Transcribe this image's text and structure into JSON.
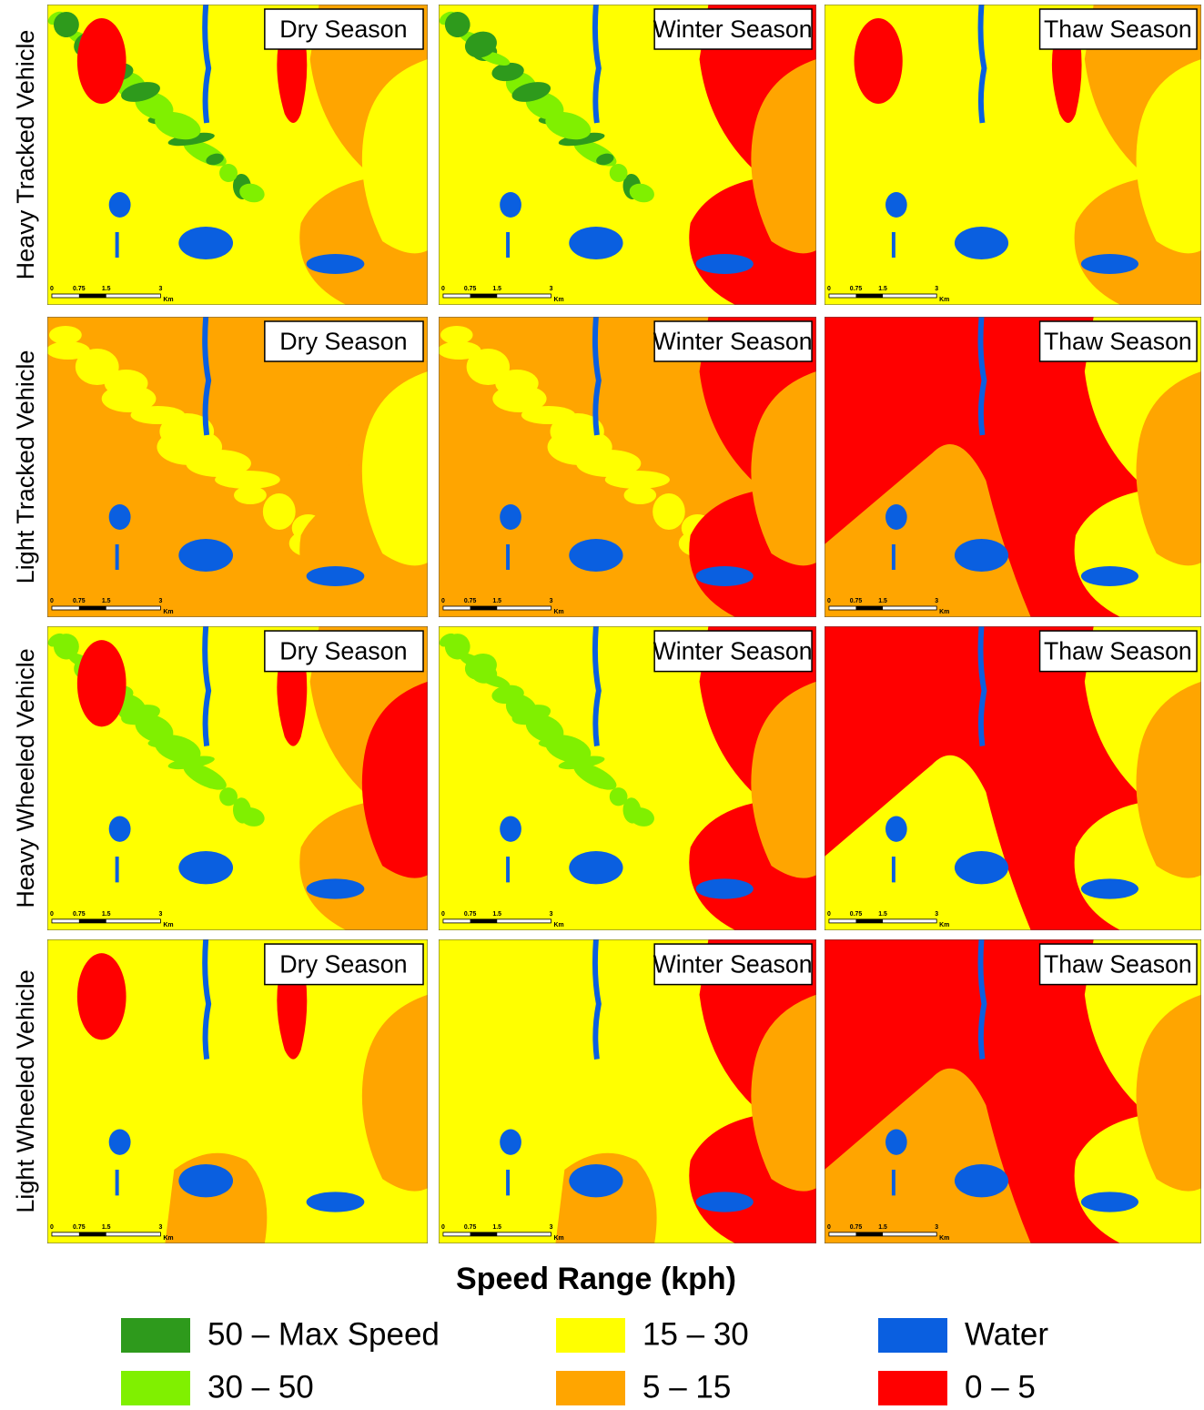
{
  "rows": [
    "Heavy Tracked Vehicle",
    "Light Tracked Vehicle",
    "Heavy Wheeled Vehicle",
    "Light Wheeled Vehicle"
  ],
  "columns": [
    "Dry Season",
    "Winter Season",
    "Thaw Season"
  ],
  "scale_bar": {
    "ticks": [
      "0",
      "0.75",
      "1.5",
      "3"
    ],
    "unit": "Km"
  },
  "legend": {
    "title": "Speed Range (kph)",
    "items": [
      {
        "label": "50 – Max Speed",
        "color": "#2e9a1c"
      },
      {
        "label": "30 – 50",
        "color": "#80f000"
      },
      {
        "label": "15 – 30",
        "color": "#ffff00"
      },
      {
        "label": "5 – 15",
        "color": "#ffa500"
      },
      {
        "label": "Water",
        "color": "#0a5fe0"
      },
      {
        "label": "0 – 5",
        "color": "#ff0000"
      }
    ]
  }
}
